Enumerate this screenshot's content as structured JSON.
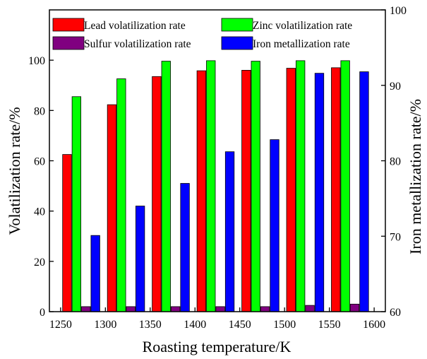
{
  "chart_data": {
    "type": "bar",
    "xlabel": "Roasting temperature/K",
    "ylabel_left": "Volatilization rate/%",
    "ylabel_right": "Iron metallization rate/%",
    "xlim": [
      1237.5,
      1612.5
    ],
    "x_ticks": [
      1250,
      1300,
      1350,
      1400,
      1450,
      1500,
      1550,
      1600
    ],
    "ylim_left": [
      0,
      120
    ],
    "y_ticks_left": [
      0,
      20,
      40,
      60,
      80,
      100
    ],
    "ylim_right": [
      60,
      100
    ],
    "y_ticks_right": [
      60,
      70,
      80,
      90,
      100
    ],
    "categories": [
      1273,
      1323,
      1373,
      1423,
      1473,
      1523,
      1573
    ],
    "series": [
      {
        "name": "Lead volatilization rate",
        "axis": "left",
        "color": "#ff0000",
        "values": [
          62.5,
          82.3,
          93.5,
          95.8,
          96.0,
          96.8,
          97.0
        ]
      },
      {
        "name": "Zinc volatilization rate",
        "axis": "left",
        "color": "#00ff00",
        "values": [
          85.5,
          92.6,
          99.6,
          99.8,
          99.6,
          99.8,
          99.8
        ]
      },
      {
        "name": "Sulfur volatilization rate",
        "axis": "left",
        "color": "#800080",
        "values": [
          2.0,
          2.0,
          2.0,
          2.0,
          2.0,
          2.5,
          3.0
        ]
      },
      {
        "name": "Iron metallization rate",
        "axis": "right",
        "color": "#0000ff",
        "values": [
          70.1,
          74.0,
          77.0,
          81.2,
          82.8,
          91.6,
          91.8
        ]
      }
    ],
    "legend_placement": "top",
    "grid": false
  }
}
